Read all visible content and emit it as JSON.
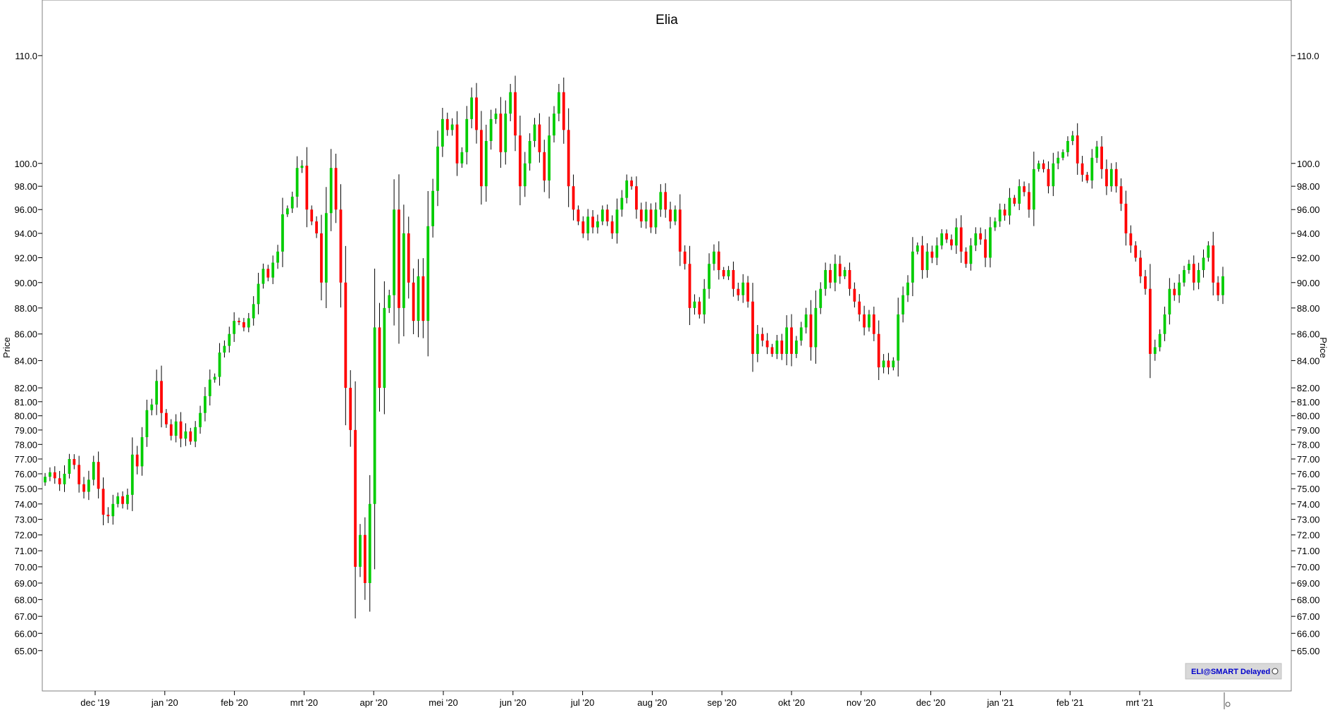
{
  "chart_data": {
    "type": "candlestick",
    "title": "Elia",
    "ylabel_left": "Price",
    "ylabel_right": "Price",
    "y_scale": "log",
    "ylim": [
      62.8,
      115.4
    ],
    "y_ticks": [
      "65.00",
      "66.00",
      "67.00",
      "68.00",
      "69.00",
      "70.00",
      "71.00",
      "72.00",
      "73.00",
      "74.00",
      "75.00",
      "76.00",
      "77.00",
      "78.00",
      "79.00",
      "80.00",
      "81.00",
      "82.00",
      "84.00",
      "86.00",
      "88.00",
      "90.00",
      "92.00",
      "94.00",
      "96.00",
      "98.00",
      "100.0",
      "110.0"
    ],
    "x_labels": [
      "dec '19",
      "jan '20",
      "feb '20",
      "mrt '20",
      "apr '20",
      "mei '20",
      "jun '20",
      "jul '20",
      "aug '20",
      "sep '20",
      "okt '20",
      "nov '20",
      "dec '20",
      "jan '21",
      "feb '21",
      "mrt '21"
    ],
    "up_color": "#00cc00",
    "down_color": "#ff0000",
    "wick_color": "#000000",
    "badge": "ELI@SMART Delayed",
    "closes": [
      75.8,
      76.1,
      75.7,
      75.3,
      76.0,
      77.0,
      76.6,
      75.3,
      74.8,
      75.6,
      76.8,
      75.0,
      73.3,
      73.2,
      74.0,
      74.5,
      74.0,
      74.6,
      77.3,
      76.5,
      78.5,
      80.4,
      80.8,
      82.5,
      80.2,
      79.4,
      78.6,
      79.6,
      78.4,
      78.9,
      78.2,
      79.2,
      80.2,
      81.4,
      82.6,
      82.8,
      84.6,
      85.1,
      86.0,
      87.0,
      86.9,
      86.5,
      87.2,
      88.3,
      89.9,
      91.1,
      90.4,
      91.6,
      92.5,
      95.6,
      96.1,
      97.1,
      99.6,
      99.8,
      96.0,
      95.0,
      94.0,
      90.0,
      95.7,
      99.6,
      96.0,
      90.0,
      82.0,
      79.0,
      70.0,
      72.0,
      69.0,
      74.0,
      86.5,
      82.0,
      88.0,
      89.0,
      96.0,
      88.0,
      94.0,
      90.0,
      87.0,
      90.5,
      87.0,
      94.6,
      97.6,
      101.5,
      104.0,
      103.0,
      103.5,
      100.0,
      101.0,
      104.0,
      106.0,
      103.0,
      98.0,
      102.0,
      104.0,
      104.5,
      101.0,
      104.5,
      106.5,
      102.5,
      98.0,
      100.0,
      102.0,
      103.5,
      101.0,
      98.5,
      102.5,
      104.5,
      106.5,
      103.0,
      98.0,
      96.0,
      95.0,
      94.0,
      95.4,
      94.5,
      95.0,
      96.0,
      95.0,
      94.0,
      96.0,
      97.0,
      98.5,
      98.0,
      96.0,
      95.0,
      96.0,
      94.5,
      96.0,
      97.5,
      96.0,
      95.0,
      96.0,
      92.5,
      91.5,
      88.0,
      88.5,
      87.5,
      89.5,
      91.5,
      92.5,
      91.0,
      90.5,
      91.0,
      89.5,
      89.0,
      90.0,
      88.5,
      84.5,
      86.0,
      85.5,
      85.0,
      84.5,
      85.5,
      84.5,
      86.5,
      84.5,
      85.5,
      86.5,
      87.5,
      85.0,
      88.0,
      89.5,
      91.0,
      90.0,
      91.5,
      90.5,
      91.0,
      89.5,
      88.5,
      87.5,
      86.5,
      87.5,
      86.0,
      83.5,
      84.0,
      83.5,
      84.0,
      87.5,
      89.0,
      90.0,
      92.5,
      93.0,
      91.0,
      92.5,
      92.0,
      93.0,
      94.0,
      93.5,
      93.0,
      94.5,
      92.5,
      91.5,
      93.0,
      94.0,
      93.5,
      92.0,
      94.5,
      95.0,
      96.0,
      95.5,
      97.0,
      96.5,
      98.0,
      97.5,
      96.0,
      99.5,
      100.0,
      99.5,
      98.0,
      100.0,
      100.5,
      101.0,
      102.0,
      102.5,
      100.0,
      99.0,
      98.5,
      100.5,
      101.5,
      99.5,
      98.0,
      99.5,
      98.0,
      96.5,
      94.0,
      93.0,
      92.0,
      90.5,
      89.5,
      84.5,
      85.0,
      86.0,
      87.5,
      89.5,
      89.0,
      90.0,
      91.0,
      91.5,
      90.0,
      91.0,
      92.0,
      93.0,
      90.0,
      89.0,
      90.5
    ]
  }
}
